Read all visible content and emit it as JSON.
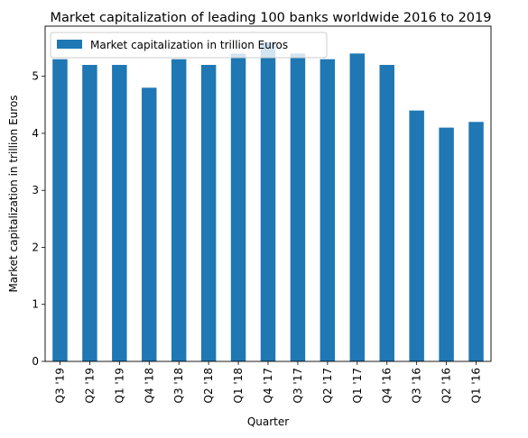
{
  "chart_data": {
    "type": "bar",
    "title": "Market capitalization of leading 100 banks worldwide 2016 to 2019",
    "xlabel": "Quarter",
    "ylabel": "Market capitalization in trillion Euros",
    "categories": [
      "Q3 '19",
      "Q2 '19",
      "Q1 '19",
      "Q4 '18",
      "Q3 '18",
      "Q2 '18",
      "Q1 '18",
      "Q4 '17",
      "Q3 '17",
      "Q2 '17",
      "Q1 '17",
      "Q4 '16",
      "Q3 '16",
      "Q2 '16",
      "Q1 '16"
    ],
    "series": [
      {
        "name": "Market capitalization in trillion Euros",
        "values": [
          5.3,
          5.2,
          5.2,
          4.8,
          5.3,
          5.2,
          5.4,
          5.6,
          5.4,
          5.3,
          5.4,
          5.2,
          4.4,
          4.1,
          4.2
        ],
        "color": "#1f77b4"
      }
    ],
    "yticks": [
      0,
      1,
      2,
      3,
      4,
      5
    ],
    "ylim": [
      0,
      5.88
    ],
    "grid": false,
    "legend_position": "upper-left"
  }
}
